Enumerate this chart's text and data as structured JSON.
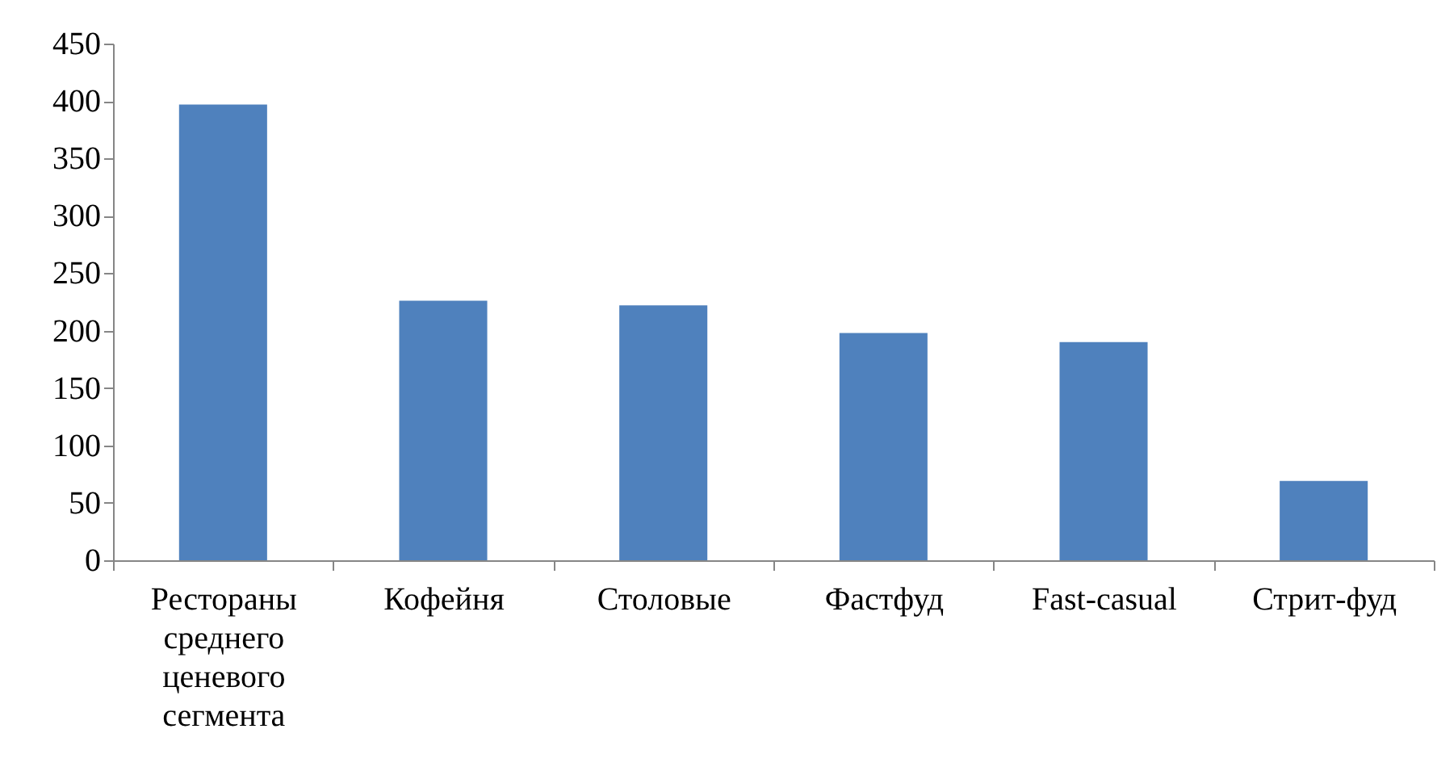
{
  "chart_data": {
    "type": "bar",
    "categories": [
      "Рестораны среднего ценевого сегмента",
      "Кофейня",
      "Столовые",
      "Фастфуд",
      "Fast-casual",
      "Стрит-фуд"
    ],
    "values": [
      397,
      226,
      222,
      198,
      190,
      69
    ],
    "color": "#4f81bd",
    "ylim": [
      0,
      450
    ],
    "yticks": [
      0,
      50,
      100,
      150,
      200,
      250,
      300,
      350,
      400,
      450
    ]
  }
}
